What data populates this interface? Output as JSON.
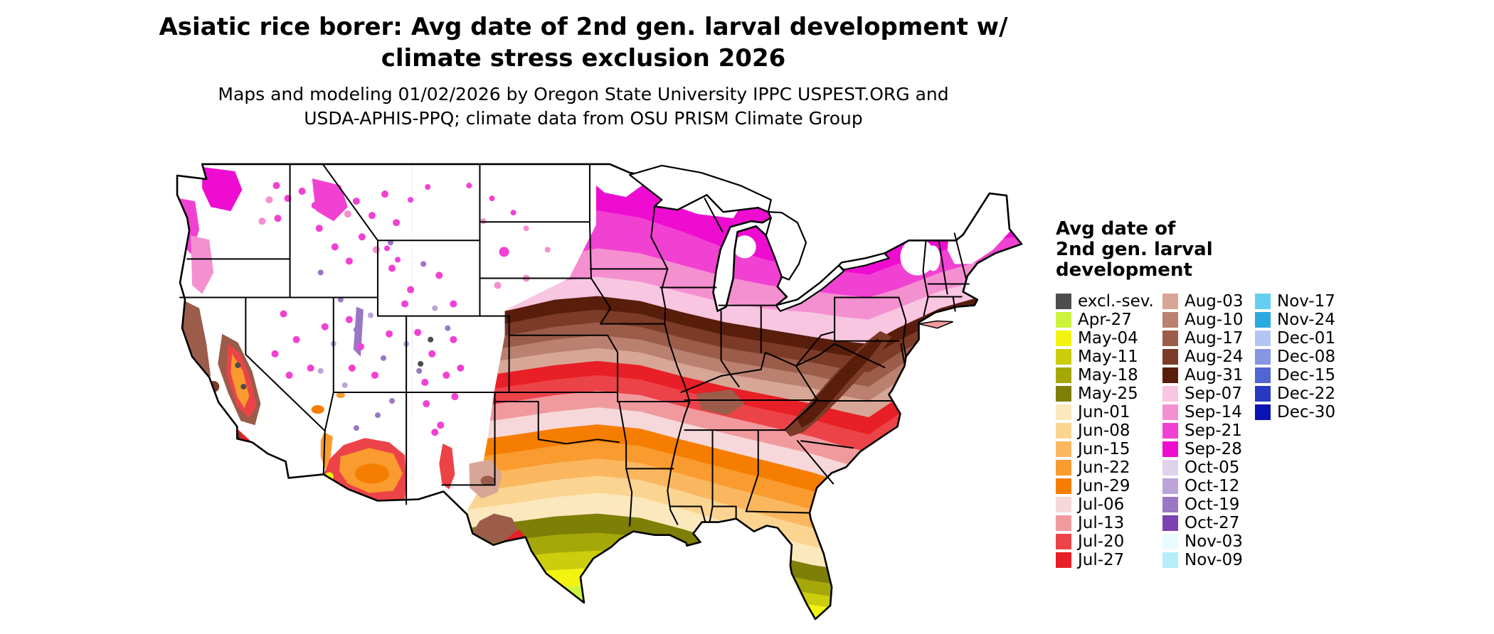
{
  "title": {
    "line1": "Asiatic rice borer: Avg date of 2nd gen. larval development w/",
    "line2": "climate stress exclusion 2026"
  },
  "subtitle": {
    "line1": "Maps and modeling 01/02/2026 by Oregon State University IPPC USPEST.ORG and",
    "line2": "USDA-APHIS-PPQ; climate data from OSU PRISM Climate Group"
  },
  "legend": {
    "title": "Avg date of\n2nd gen. larval\ndevelopment",
    "columns": [
      [
        {
          "label": "excl.-sev.",
          "color": "#4d4d4d"
        },
        {
          "label": "Apr-27",
          "color": "#cdf33f"
        },
        {
          "label": "May-04",
          "color": "#f2f410"
        },
        {
          "label": "May-11",
          "color": "#cbcd0d"
        },
        {
          "label": "May-18",
          "color": "#a6a80a"
        },
        {
          "label": "May-25",
          "color": "#7e7f07"
        },
        {
          "label": "Jun-01",
          "color": "#fce8bd"
        },
        {
          "label": "Jun-08",
          "color": "#fbd491"
        },
        {
          "label": "Jun-15",
          "color": "#fab75f"
        },
        {
          "label": "Jun-22",
          "color": "#f99b2e"
        },
        {
          "label": "Jun-29",
          "color": "#f57e00"
        },
        {
          "label": "Jul-06",
          "color": "#f6d8da"
        },
        {
          "label": "Jul-13",
          "color": "#f19a9e"
        },
        {
          "label": "Jul-20",
          "color": "#ec4348"
        },
        {
          "label": "Jul-27",
          "color": "#e81f26"
        }
      ],
      [
        {
          "label": "Aug-03",
          "color": "#d7a697"
        },
        {
          "label": "Aug-10",
          "color": "#ba8070"
        },
        {
          "label": "Aug-17",
          "color": "#9b5c4a"
        },
        {
          "label": "Aug-24",
          "color": "#7b3b27"
        },
        {
          "label": "Aug-31",
          "color": "#591d0c"
        },
        {
          "label": "Sep-07",
          "color": "#f8c6e1"
        },
        {
          "label": "Sep-14",
          "color": "#f490d0"
        },
        {
          "label": "Sep-21",
          "color": "#f141d3"
        },
        {
          "label": "Sep-28",
          "color": "#ee0cd1"
        },
        {
          "label": "Oct-05",
          "color": "#ded4ea"
        },
        {
          "label": "Oct-12",
          "color": "#bca4d9"
        },
        {
          "label": "Oct-19",
          "color": "#9b76c5"
        },
        {
          "label": "Oct-27",
          "color": "#7b41b1"
        },
        {
          "label": "Nov-03",
          "color": "#e9fbff"
        },
        {
          "label": "Nov-09",
          "color": "#b5edfa"
        }
      ],
      [
        {
          "label": "Nov-17",
          "color": "#63cef0"
        },
        {
          "label": "Nov-24",
          "color": "#2ba9e1"
        },
        {
          "label": "Dec-01",
          "color": "#b5c5f2"
        },
        {
          "label": "Dec-08",
          "color": "#8596e5"
        },
        {
          "label": "Dec-15",
          "color": "#5165d3"
        },
        {
          "label": "Dec-22",
          "color": "#2739c1"
        },
        {
          "label": "Dec-30",
          "color": "#0b13b5"
        }
      ]
    ]
  }
}
